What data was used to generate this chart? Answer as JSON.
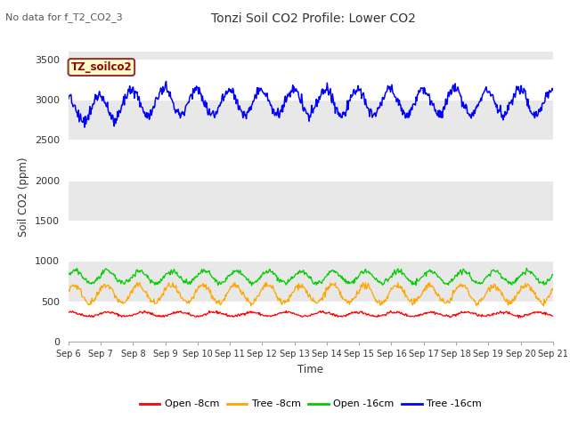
{
  "title": "Tonzi Soil CO2 Profile: Lower CO2",
  "subtitle": "No data for f_T2_CO2_3",
  "ylabel": "Soil CO2 (ppm)",
  "xlabel": "Time",
  "ylim": [
    0,
    3600
  ],
  "yticks": [
    0,
    500,
    1000,
    1500,
    2000,
    2500,
    3000,
    3500
  ],
  "xtick_labels": [
    "Sep 6",
    "Sep 7",
    "Sep 8",
    "Sep 9",
    "Sep 10",
    "Sep 11",
    "Sep 12",
    "Sep 13",
    "Sep 14",
    "Sep 15",
    "Sep 16",
    "Sep 17",
    "Sep 18",
    "Sep 19",
    "Sep 20",
    "Sep 21"
  ],
  "fig_bg_color": "#ffffff",
  "plot_bg_color": "#e8e8e8",
  "grid_color": "#ffffff",
  "legend_label": "TZ_soilco2",
  "legend_bg": "#ffffcc",
  "legend_border": "#993333",
  "series": {
    "open_8cm": {
      "color": "#ff0000",
      "label": "Open -8cm"
    },
    "tree_8cm": {
      "color": "#ffa500",
      "label": "Tree -8cm"
    },
    "open_16cm": {
      "color": "#00cc00",
      "label": "Open -16cm"
    },
    "tree_16cm": {
      "color": "#0000ff",
      "label": "Tree -16cm"
    }
  }
}
